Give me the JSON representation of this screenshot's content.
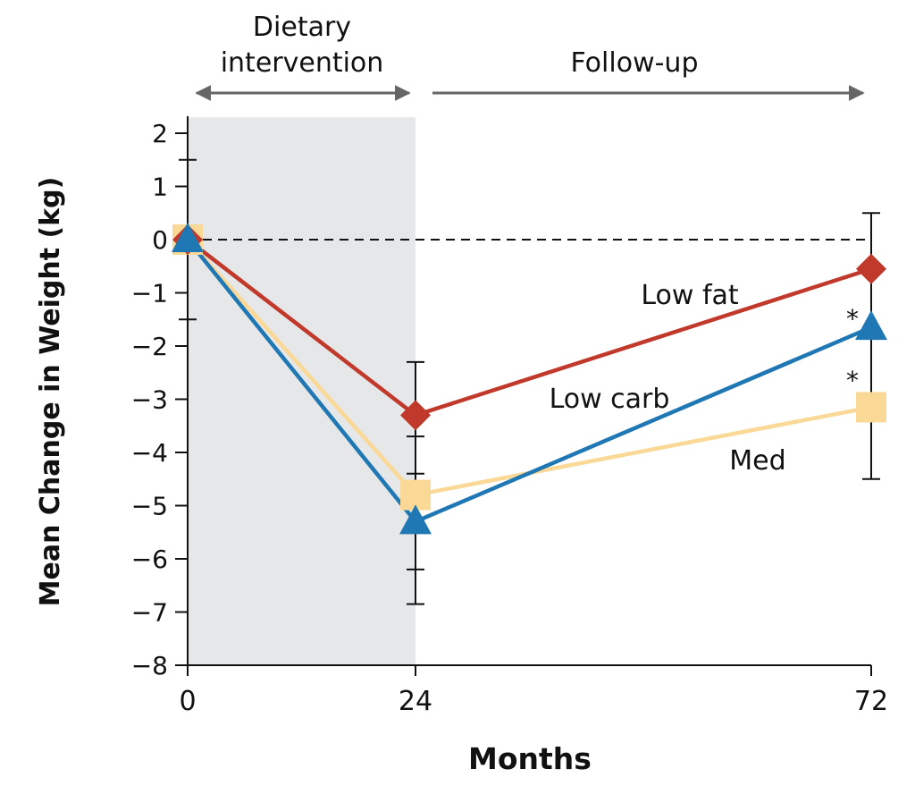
{
  "chart_data": {
    "type": "line",
    "xlabel": "Months",
    "ylabel": "Mean Change in Weight (kg)",
    "x": [
      0,
      24,
      72
    ],
    "xticks": [
      "0",
      "24",
      "72"
    ],
    "ylim": [
      -8,
      2.3
    ],
    "yticks": [
      "2",
      "1",
      "0",
      "−1",
      "−2",
      "−3",
      "−4",
      "−5",
      "−6",
      "−7",
      "−8"
    ],
    "reference_line_y": 0,
    "shaded_period": [
      0,
      24
    ],
    "periods": [
      {
        "label_line1": "Dietary",
        "label_line2": "intervention",
        "from": 0,
        "to": 24
      },
      {
        "label_line1": "",
        "label_line2": "Follow-up",
        "from": 24,
        "to": 72
      }
    ],
    "series": [
      {
        "name": "Low fat",
        "marker": "diamond",
        "color": "#c0392b",
        "values": [
          0,
          -3.3,
          -0.55
        ]
      },
      {
        "name": "Low carb",
        "marker": "triangle",
        "color": "#1f77b4",
        "values": [
          0,
          -5.3,
          -1.65
        ]
      },
      {
        "name": "Med",
        "marker": "square",
        "color": "#fad896",
        "values": [
          0,
          -4.8,
          -3.15
        ]
      }
    ],
    "error_bars": [
      {
        "x": 0,
        "low": -1.5,
        "high": 1.5
      },
      {
        "x": 24,
        "low": -6.85,
        "high": -2.3
      },
      {
        "x": 72,
        "low": -4.5,
        "high": 0.5
      }
    ],
    "annotations": [
      "*",
      "*"
    ]
  }
}
